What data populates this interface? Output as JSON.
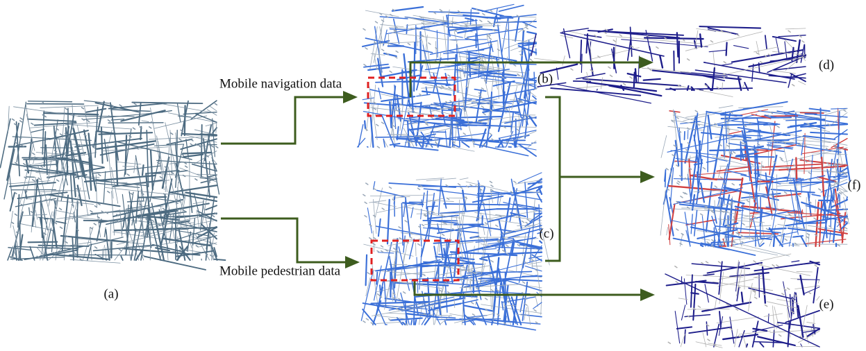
{
  "panels": [
    {
      "label": "(a)"
    },
    {
      "label": "(b)"
    },
    {
      "label": "(c)"
    },
    {
      "label": "(d)"
    },
    {
      "label": "(e)"
    },
    {
      "label": "(f)"
    }
  ],
  "inputs": [
    "Mobile navigation data",
    "Mobile pedestrian data"
  ]
}
